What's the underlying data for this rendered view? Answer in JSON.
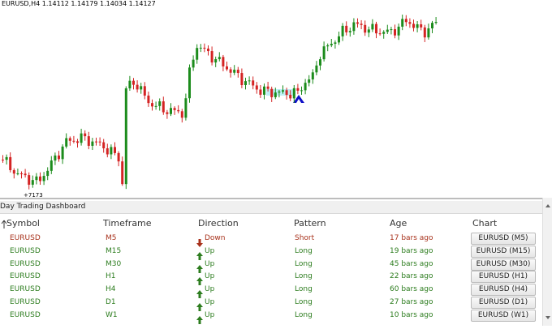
{
  "chart": {
    "header": "EURUSD,H4  1.14112 1.14179 1.14034 1.14127",
    "marker_label": "+7173"
  },
  "dashboard": {
    "title": "Day Trading Dashboard",
    "columns": [
      "Symbol",
      "Timeframe",
      "Direction",
      "Pattern",
      "Age",
      "Chart"
    ],
    "rows": [
      {
        "symbol": "EURUSD",
        "timeframe": "M5",
        "direction": "Down",
        "pattern": "Short",
        "age": "17 bars ago",
        "chart": "EURUSD (M5)",
        "color": "#a8321c",
        "arrow": "down"
      },
      {
        "symbol": "EURUSD",
        "timeframe": "M15",
        "direction": "Up",
        "pattern": "Long",
        "age": "19 bars ago",
        "chart": "EURUSD (M15)",
        "color": "#2d7d1f",
        "arrow": "up"
      },
      {
        "symbol": "EURUSD",
        "timeframe": "M30",
        "direction": "Up",
        "pattern": "Long",
        "age": "45 bars ago",
        "chart": "EURUSD (M30)",
        "color": "#2d7d1f",
        "arrow": "up"
      },
      {
        "symbol": "EURUSD",
        "timeframe": "H1",
        "direction": "Up",
        "pattern": "Long",
        "age": "22 bars ago",
        "chart": "EURUSD (H1)",
        "color": "#2d7d1f",
        "arrow": "up"
      },
      {
        "symbol": "EURUSD",
        "timeframe": "H4",
        "direction": "Up",
        "pattern": "Long",
        "age": "60 bars ago",
        "chart": "EURUSD (H4)",
        "color": "#2d7d1f",
        "arrow": "up"
      },
      {
        "symbol": "EURUSD",
        "timeframe": "D1",
        "direction": "Up",
        "pattern": "Long",
        "age": "27 bars ago",
        "chart": "EURUSD (D1)",
        "color": "#2d7d1f",
        "arrow": "up"
      },
      {
        "symbol": "EURUSD",
        "timeframe": "W1",
        "direction": "Up",
        "pattern": "Long",
        "age": "10 bars ago",
        "chart": "EURUSD (W1)",
        "color": "#2d7d1f",
        "arrow": "up"
      }
    ]
  }
}
